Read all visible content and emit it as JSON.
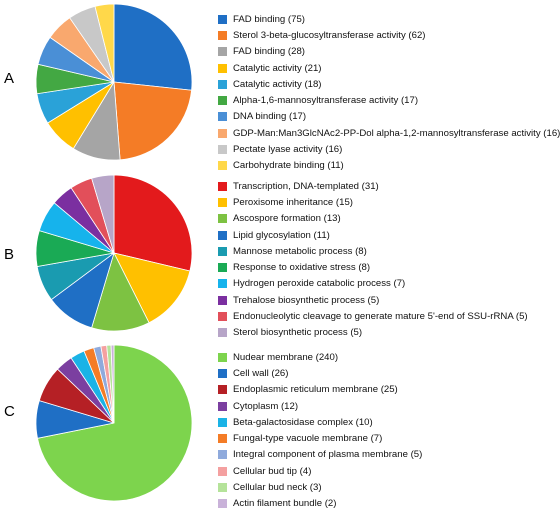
{
  "chart_data": [
    {
      "type": "pie",
      "panel_label": "A",
      "legend_position": "right",
      "categories": [
        "FAD binding (75)",
        "Sterol 3-beta-glucosyltransferase activity (62)",
        "FAD binding (28)",
        "Catalytic activity (21)",
        "Catalytic activity (18)",
        "Alpha-1,6-mannosyltransferase activity (17)",
        "DNA binding (17)",
        "GDP-Man:Man3GlcNAc2-PP-Dol alpha-1,2-mannosyltransferase activity (16)",
        "Pectate lyase activity (16)",
        "Carbohydrate binding (11)"
      ],
      "values": [
        75,
        62,
        28,
        21,
        18,
        17,
        17,
        16,
        16,
        11
      ],
      "colors": [
        "#1f6fc5",
        "#f47c26",
        "#a5a5a5",
        "#ffc000",
        "#2aa2d8",
        "#43a843",
        "#4a8fd6",
        "#f9a86e",
        "#c8c8c8",
        "#ffd84a"
      ]
    },
    {
      "type": "pie",
      "panel_label": "B",
      "legend_position": "right",
      "categories": [
        "Transcription, DNA-templated (31)",
        "Peroxisome inheritance (15)",
        "Ascospore formation (13)",
        "Lipid glycosylation (11)",
        "Mannose metabolic process (8)",
        "Response to oxidative stress (8)",
        "Hydrogen peroxide catabolic process (7)",
        "Trehalose biosynthetic process (5)",
        "Endonucleolytic cleavage to generate mature 5'-end of SSU-rRNA (5)",
        "Sterol biosynthetic process (5)"
      ],
      "values": [
        31,
        15,
        13,
        11,
        8,
        8,
        7,
        5,
        5,
        5
      ],
      "colors": [
        "#e31a1c",
        "#ffc000",
        "#7dc242",
        "#1f6fc5",
        "#1a9bb0",
        "#1aaa55",
        "#16b3ec",
        "#7b2fa0",
        "#e24f5a",
        "#b7a5c8"
      ]
    },
    {
      "type": "pie",
      "panel_label": "C",
      "legend_position": "right",
      "categories": [
        "Nudear membrane (240)",
        "Cell wall (26)",
        "Endoplasmic reticulum membrane (25)",
        "Cytoplasm (12)",
        "Beta-galactosidase complex (10)",
        "Fungal-type vacuole membrane (7)",
        "Integral component of plasma membrane (5)",
        "Cellular bud tip (4)",
        "Cellular bud neck (3)",
        "Actin filament bundle (2)"
      ],
      "values": [
        240,
        26,
        25,
        12,
        10,
        7,
        5,
        4,
        3,
        2
      ],
      "colors": [
        "#7dd44d",
        "#1f6fc5",
        "#b52025",
        "#7b3fa0",
        "#1ab3e6",
        "#f47c26",
        "#8faadc",
        "#f4a0a0",
        "#b5e39a",
        "#c9b2d9"
      ]
    }
  ]
}
